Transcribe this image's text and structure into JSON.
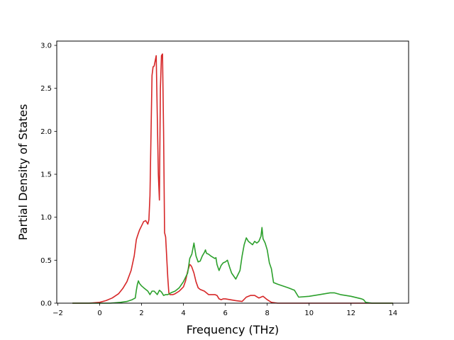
{
  "chart_data": {
    "type": "line",
    "title": "",
    "xlabel": "Frequency (THz)",
    "ylabel": "Partial Density of States",
    "xlim": [
      -2.05,
      14.75
    ],
    "ylim": [
      0,
      3.05
    ],
    "xticks": [
      -2,
      0,
      2,
      4,
      6,
      8,
      10,
      12,
      14
    ],
    "yticks": [
      0.0,
      0.5,
      1.0,
      1.5,
      2.0,
      2.5,
      3.0
    ],
    "xtick_labels": [
      "−2",
      "0",
      "2",
      "4",
      "6",
      "8",
      "10",
      "12",
      "14"
    ],
    "ytick_labels": [
      "0.0",
      "0.5",
      "1.0",
      "1.5",
      "2.0",
      "2.5",
      "3.0"
    ],
    "grid": false,
    "legend": "none",
    "series": [
      {
        "color": "#d62728",
        "x": [
          -1.3,
          -0.5,
          0.0,
          0.3,
          0.6,
          0.9,
          1.1,
          1.3,
          1.5,
          1.65,
          1.75,
          1.8,
          1.9,
          2.0,
          2.1,
          2.2,
          2.3,
          2.35,
          2.4,
          2.5,
          2.55,
          2.6,
          2.7,
          2.8,
          2.85,
          2.9,
          2.95,
          3.0,
          3.05,
          3.1,
          3.15,
          3.25,
          3.3,
          3.35,
          3.4,
          3.5,
          3.6,
          3.8,
          4.0,
          4.1,
          4.2,
          4.3,
          4.35,
          4.4,
          4.5,
          4.6,
          4.7,
          4.8,
          5.0,
          5.2,
          5.4,
          5.5,
          5.6,
          5.7,
          5.8,
          5.9,
          6.0,
          6.5,
          6.8,
          7.0,
          7.2,
          7.4,
          7.6,
          7.8,
          8.0,
          8.2,
          8.5,
          9.0,
          10.0,
          11.0,
          12.0,
          13.0,
          14.0
        ],
        "y": [
          0.0,
          0.0,
          0.01,
          0.03,
          0.06,
          0.11,
          0.17,
          0.25,
          0.38,
          0.55,
          0.74,
          0.78,
          0.85,
          0.9,
          0.95,
          0.96,
          0.92,
          0.97,
          1.25,
          2.65,
          2.75,
          2.76,
          2.88,
          1.5,
          1.2,
          2.5,
          2.88,
          2.9,
          2.0,
          0.82,
          0.77,
          0.3,
          0.12,
          0.1,
          0.1,
          0.1,
          0.11,
          0.14,
          0.19,
          0.26,
          0.37,
          0.45,
          0.44,
          0.42,
          0.35,
          0.25,
          0.18,
          0.16,
          0.14,
          0.1,
          0.1,
          0.1,
          0.09,
          0.05,
          0.04,
          0.05,
          0.05,
          0.03,
          0.02,
          0.07,
          0.09,
          0.09,
          0.06,
          0.08,
          0.04,
          0.01,
          0.0,
          0.0,
          0.0,
          0.0,
          0.0,
          0.0,
          0.0
        ]
      },
      {
        "color": "#2ca02c",
        "x": [
          -1.3,
          0.0,
          0.5,
          1.0,
          1.3,
          1.55,
          1.7,
          1.75,
          1.8,
          1.85,
          1.9,
          2.0,
          2.1,
          2.3,
          2.4,
          2.5,
          2.6,
          2.75,
          2.85,
          2.95,
          3.05,
          3.15,
          3.25,
          3.4,
          3.6,
          3.8,
          4.0,
          4.2,
          4.3,
          4.4,
          4.5,
          4.55,
          4.6,
          4.7,
          4.8,
          4.9,
          5.0,
          5.05,
          5.1,
          5.2,
          5.3,
          5.5,
          5.55,
          5.6,
          5.7,
          5.8,
          5.9,
          6.0,
          6.1,
          6.2,
          6.3,
          6.5,
          6.7,
          6.8,
          6.9,
          7.0,
          7.1,
          7.2,
          7.3,
          7.4,
          7.5,
          7.6,
          7.7,
          7.75,
          7.8,
          7.9,
          8.0,
          8.1,
          8.2,
          8.3,
          8.5,
          9.0,
          9.3,
          9.5,
          10.0,
          10.5,
          11.0,
          11.2,
          11.5,
          12.0,
          12.5,
          12.6,
          12.7,
          13.0,
          14.0
        ],
        "y": [
          0.0,
          0.0,
          0.0,
          0.01,
          0.02,
          0.04,
          0.06,
          0.15,
          0.22,
          0.26,
          0.23,
          0.2,
          0.18,
          0.14,
          0.1,
          0.14,
          0.14,
          0.1,
          0.15,
          0.13,
          0.09,
          0.1,
          0.1,
          0.12,
          0.14,
          0.18,
          0.25,
          0.35,
          0.52,
          0.57,
          0.7,
          0.62,
          0.55,
          0.48,
          0.49,
          0.55,
          0.59,
          0.62,
          0.58,
          0.57,
          0.55,
          0.52,
          0.53,
          0.45,
          0.38,
          0.44,
          0.47,
          0.48,
          0.5,
          0.42,
          0.35,
          0.28,
          0.38,
          0.55,
          0.68,
          0.76,
          0.72,
          0.7,
          0.68,
          0.72,
          0.7,
          0.72,
          0.78,
          0.88,
          0.75,
          0.7,
          0.62,
          0.47,
          0.4,
          0.24,
          0.22,
          0.18,
          0.15,
          0.07,
          0.08,
          0.1,
          0.12,
          0.12,
          0.1,
          0.08,
          0.05,
          0.04,
          0.01,
          0.0,
          0.0
        ]
      }
    ]
  }
}
